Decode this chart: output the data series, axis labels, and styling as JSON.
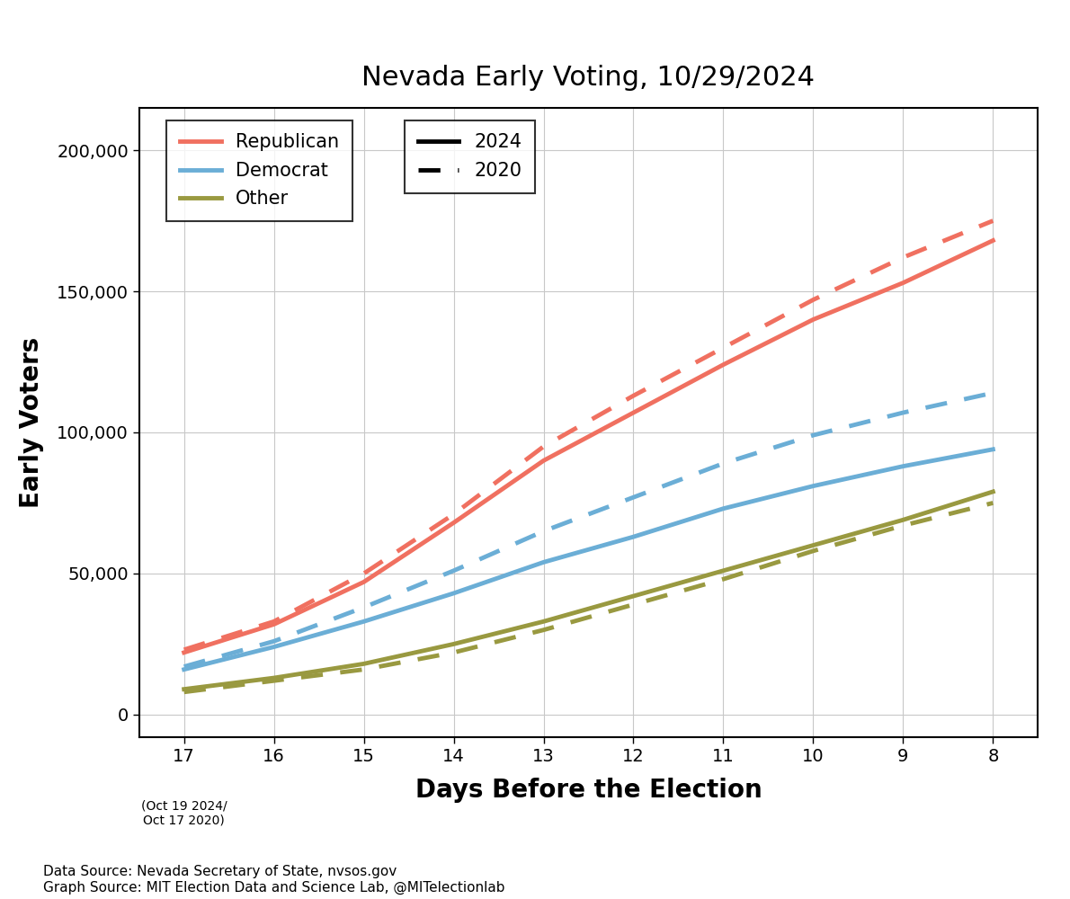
{
  "title": "Nevada Early Voting, 10/29/2024",
  "xlabel": "Days Before the Election",
  "ylabel": "Early Voters",
  "x_ticks": [
    17,
    16,
    15,
    14,
    13,
    12,
    11,
    10,
    9,
    8
  ],
  "x_note": "(Oct 19 2024/\nOct 17 2020)",
  "ylim": [
    -8000,
    215000
  ],
  "y_ticks": [
    0,
    50000,
    100000,
    150000,
    200000
  ],
  "source_text": "Data Source: Nevada Secretary of State, nvsos.gov\nGraph Source: MIT Election Data and Science Lab, @MITelectionlab",
  "rep_2024": [
    22000,
    32000,
    47000,
    68000,
    90000,
    107000,
    124000,
    140000,
    153000,
    168000
  ],
  "rep_2020": [
    23000,
    33000,
    50000,
    71000,
    95000,
    113000,
    130000,
    147000,
    162000,
    175000
  ],
  "dem_2024": [
    16000,
    24000,
    33000,
    43000,
    54000,
    63000,
    73000,
    81000,
    88000,
    94000
  ],
  "dem_2020": [
    17000,
    26000,
    38000,
    51000,
    65000,
    77000,
    89000,
    99000,
    107000,
    114000
  ],
  "oth_2024": [
    9000,
    13000,
    18000,
    25000,
    33000,
    42000,
    51000,
    60000,
    69000,
    79000
  ],
  "oth_2020": [
    8000,
    12000,
    16000,
    22000,
    30000,
    39000,
    48000,
    58000,
    67000,
    75000
  ],
  "rep_color": "#f07060",
  "dem_color": "#6baed6",
  "oth_color": "#999940",
  "line_width": 3.5,
  "title_fontsize": 22,
  "axis_label_fontsize": 20,
  "tick_fontsize": 14,
  "legend_fontsize": 15,
  "source_fontsize": 11
}
